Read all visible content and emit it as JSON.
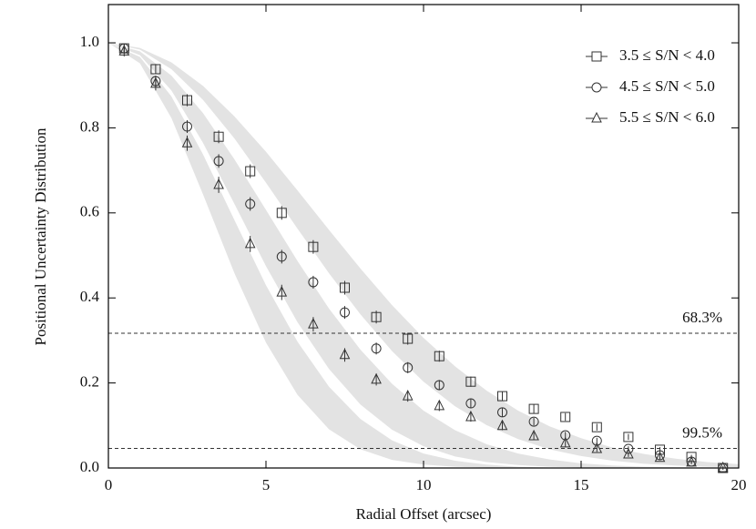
{
  "chart_data": {
    "type": "scatter",
    "x_label": "Radial Offset (arcsec)",
    "y_label": "Positional Uncertainty Distribution",
    "xlim": [
      0,
      20
    ],
    "xticks": [
      0,
      5,
      10,
      15,
      20
    ],
    "ylim": [
      0,
      1.09
    ],
    "yticks": [
      {
        "value": 0,
        "label": "0.0"
      },
      {
        "value": 0.2,
        "label": "0.2"
      },
      {
        "value": 0.4,
        "label": "0.4"
      },
      {
        "value": 0.6,
        "label": "0.6"
      },
      {
        "value": 0.8,
        "label": "0.8"
      },
      {
        "value": 1,
        "label": "1.0"
      }
    ],
    "legend": "upper right",
    "x": [
      0.5,
      1.5,
      2.5,
      3.5,
      4.5,
      5.5,
      6.5,
      7.5,
      8.5,
      9.5,
      10.5,
      11.5,
      12.5,
      13.5,
      14.5,
      15.5,
      16.5,
      17.5,
      18.5,
      19.5
    ],
    "series": [
      {
        "name": "3.5 ≤ S/N < 4.0",
        "marker": "square",
        "color": "#333333",
        "values": [
          0.987,
          0.938,
          0.865,
          0.779,
          0.698,
          0.6,
          0.52,
          0.424,
          0.355,
          0.304,
          0.263,
          0.203,
          0.169,
          0.139,
          0.12,
          0.096,
          0.073,
          0.043,
          0.026,
          0.0
        ],
        "errors": [
          0.01,
          0.012,
          0.014,
          0.015,
          0.016,
          0.016,
          0.016,
          0.016,
          0.015,
          0.014,
          0.013,
          0.012,
          0.011,
          0.01,
          0.009,
          0.008,
          0.007,
          0.006,
          0.005,
          0.004
        ]
      },
      {
        "name": "4.5 ≤ S/N < 5.0",
        "marker": "circle",
        "color": "#333333",
        "values": [
          0.987,
          0.91,
          0.803,
          0.722,
          0.621,
          0.497,
          0.437,
          0.366,
          0.281,
          0.236,
          0.195,
          0.152,
          0.131,
          0.109,
          0.077,
          0.064,
          0.045,
          0.03,
          0.015,
          0.0
        ],
        "errors": [
          0.01,
          0.013,
          0.015,
          0.016,
          0.016,
          0.016,
          0.015,
          0.015,
          0.014,
          0.013,
          0.012,
          0.011,
          0.01,
          0.009,
          0.008,
          0.007,
          0.006,
          0.005,
          0.004,
          0.003
        ]
      },
      {
        "name": "5.5 ≤ S/N < 6.0",
        "marker": "triangle",
        "color": "#333333",
        "values": [
          0.98,
          0.904,
          0.764,
          0.666,
          0.527,
          0.413,
          0.338,
          0.266,
          0.208,
          0.169,
          0.146,
          0.12,
          0.099,
          0.075,
          0.058,
          0.045,
          0.032,
          0.024,
          0.013,
          0.0
        ],
        "errors": [
          0.012,
          0.016,
          0.018,
          0.019,
          0.019,
          0.018,
          0.017,
          0.016,
          0.014,
          0.013,
          0.012,
          0.011,
          0.01,
          0.009,
          0.008,
          0.007,
          0.006,
          0.005,
          0.004,
          0.003
        ]
      }
    ],
    "band_color": "#e3e3e3",
    "band_x": [
      0,
      1,
      2,
      3,
      4,
      5,
      6,
      7,
      8,
      9,
      10,
      11,
      12,
      13,
      14,
      15,
      16,
      17,
      18,
      19,
      20
    ],
    "bands": [
      {
        "lower": [
          1,
          0.952,
          0.823,
          0.644,
          0.458,
          0.295,
          0.172,
          0.091,
          0.044,
          0.019,
          0.008,
          0.003,
          0.001,
          0,
          0,
          0,
          0,
          0,
          0,
          0,
          0
        ],
        "upper": [
          1,
          0.967,
          0.874,
          0.738,
          0.583,
          0.43,
          0.297,
          0.191,
          0.115,
          0.065,
          0.034,
          0.017,
          0.008,
          0.003,
          0.001,
          0,
          0,
          0,
          0,
          0,
          0
        ]
      },
      {
        "lower": [
          1,
          0.971,
          0.888,
          0.765,
          0.621,
          0.475,
          0.343,
          0.233,
          0.149,
          0.09,
          0.051,
          0.027,
          0.014,
          0.007,
          0.003,
          0.001,
          0,
          0,
          0,
          0,
          0
        ],
        "upper": [
          1,
          0.98,
          0.923,
          0.835,
          0.726,
          0.607,
          0.487,
          0.375,
          0.278,
          0.198,
          0.135,
          0.089,
          0.056,
          0.034,
          0.02,
          0.011,
          0.006,
          0.003,
          0.002,
          0.001,
          0
        ]
      },
      {
        "lower": [
          1,
          0.984,
          0.938,
          0.866,
          0.775,
          0.671,
          0.563,
          0.458,
          0.361,
          0.275,
          0.203,
          0.145,
          0.101,
          0.068,
          0.044,
          0.028,
          0.017,
          0.01,
          0.006,
          0.003,
          0.002
        ],
        "upper": [
          1,
          0.988,
          0.954,
          0.899,
          0.827,
          0.744,
          0.653,
          0.56,
          0.469,
          0.383,
          0.306,
          0.239,
          0.182,
          0.135,
          0.098,
          0.07,
          0.048,
          0.033,
          0.022,
          0.014,
          0.009
        ]
      }
    ],
    "hlines": [
      {
        "value": 0.317,
        "label": "68.3%"
      },
      {
        "value": 0.046,
        "label": "99.5%"
      }
    ]
  }
}
